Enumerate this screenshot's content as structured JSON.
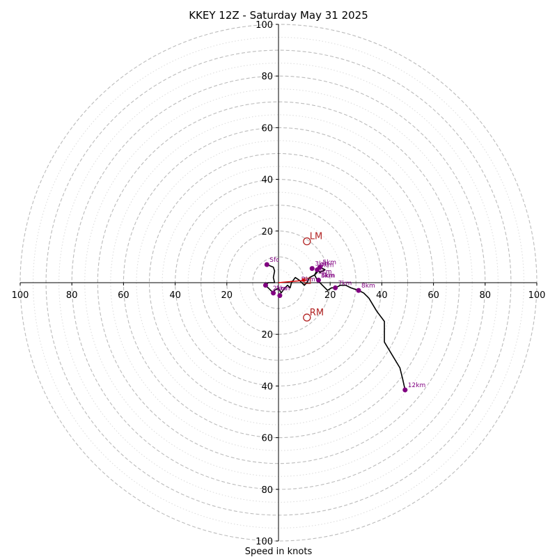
{
  "chart_data": {
    "type": "scatter",
    "title": "KKEY 12Z - Saturday May 31 2025",
    "xlabel": "Speed in knots",
    "axis_range": [
      -100,
      100
    ],
    "x_tick_labels": [
      "100",
      "80",
      "60",
      "40",
      "20",
      "20",
      "40",
      "60",
      "80",
      "100"
    ],
    "y_tick_labels": [
      "100",
      "80",
      "60",
      "40",
      "20",
      "20",
      "40",
      "60",
      "80",
      "100"
    ],
    "ring_major_knots": [
      10,
      20,
      30,
      40,
      50,
      60,
      70,
      80,
      90,
      100
    ],
    "ring_minor_knots": [
      5,
      15,
      25,
      35,
      45,
      55,
      65,
      75,
      85,
      95
    ],
    "colors": {
      "trace": "#000000",
      "points": "#800080",
      "motion": "#b22222",
      "shear": "#dd0000",
      "grid": "#bbbbbb",
      "grid_minor": "#d9d9d9"
    },
    "trace": [
      [
        -4.5,
        7
      ],
      [
        -2,
        6
      ],
      [
        -1.5,
        4.5
      ],
      [
        -2,
        2
      ],
      [
        -1.5,
        0
      ],
      [
        -4,
        0
      ],
      [
        -5,
        -1
      ],
      [
        -3,
        -3
      ],
      [
        -2,
        -4
      ],
      [
        -1.5,
        -3
      ],
      [
        0,
        -2
      ],
      [
        1,
        -4
      ],
      [
        2.5,
        -2
      ],
      [
        3.5,
        -1
      ],
      [
        4.5,
        -2
      ],
      [
        5,
        0
      ],
      [
        6.5,
        2
      ],
      [
        8,
        1
      ],
      [
        9,
        0
      ],
      [
        10,
        -1
      ],
      [
        11,
        0
      ],
      [
        12,
        2
      ],
      [
        14,
        3
      ],
      [
        15,
        5
      ],
      [
        16,
        4
      ],
      [
        18,
        5
      ],
      [
        16,
        6
      ],
      [
        15,
        4
      ],
      [
        14,
        3
      ],
      [
        15,
        1
      ],
      [
        16,
        0
      ],
      [
        18,
        -2
      ],
      [
        19,
        -3
      ],
      [
        20.5,
        -2
      ],
      [
        22,
        -2
      ],
      [
        24,
        -1
      ],
      [
        26,
        -1
      ],
      [
        28,
        -2
      ],
      [
        31,
        -3
      ],
      [
        33,
        -4
      ],
      [
        35,
        -6
      ],
      [
        38,
        -11
      ],
      [
        41,
        -15
      ],
      [
        41,
        -23
      ],
      [
        47,
        -33
      ],
      [
        48,
        -37
      ],
      [
        49,
        -41.5
      ]
    ],
    "height_points": [
      {
        "label": "Sfc",
        "x": -4.5,
        "y": 7
      },
      {
        "label": "1km",
        "x": -2,
        "y": -4
      },
      {
        "label": "",
        "x": 0.5,
        "y": -5
      },
      {
        "label": "3km",
        "x": 13,
        "y": 5.5
      },
      {
        "label": "4km",
        "x": 15,
        "y": 5
      },
      {
        "label": "5km",
        "x": 16,
        "y": 6
      },
      {
        "label": "6km",
        "x": 15.5,
        "y": 1
      },
      {
        "label": "7km",
        "x": 22,
        "y": -2
      },
      {
        "label": "8km",
        "x": 31,
        "y": -3
      },
      {
        "label": "12km",
        "x": 49,
        "y": -41.5
      },
      {
        "label": "",
        "x": -5,
        "y": -1
      }
    ],
    "extra_labels": [
      {
        "text": "3km",
        "x": 14.5,
        "y": 3
      },
      {
        "text": "3km",
        "x": 15.5,
        "y": 1.5
      },
      {
        "text": "2km",
        "x": -3,
        "y": -3.5
      },
      {
        "text": "Bkm",
        "x": 8,
        "y": 0
      }
    ],
    "storm_motion": [
      {
        "label": "LM",
        "x": 11,
        "y": 16
      },
      {
        "label": "RM",
        "x": 11,
        "y": -13.5
      }
    ],
    "shear_vector": {
      "from": [
        0,
        0
      ],
      "to": [
        11,
        1
      ]
    },
    "mean_wind_box": {
      "x": 11,
      "y": 1
    }
  }
}
